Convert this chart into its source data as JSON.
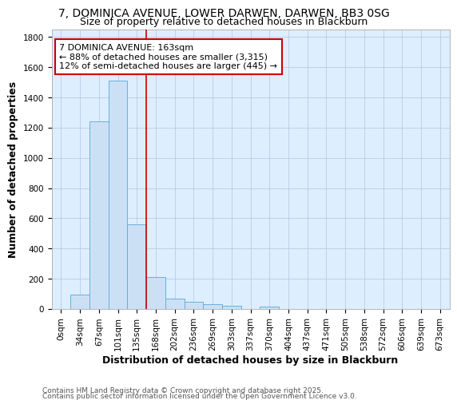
{
  "title_line1": "7, DOMINICA AVENUE, LOWER DARWEN, DARWEN, BB3 0SG",
  "title_line2": "Size of property relative to detached houses in Blackburn",
  "xlabel": "Distribution of detached houses by size in Blackburn",
  "ylabel": "Number of detached properties",
  "footer_line1": "Contains HM Land Registry data © Crown copyright and database right 2025.",
  "footer_line2": "Contains public sector information licensed under the Open Government Licence v3.0.",
  "annotation_line1": "7 DOMINICA AVENUE: 163sqm",
  "annotation_line2": "← 88% of detached houses are smaller (3,315)",
  "annotation_line3": "12% of semi-detached houses are larger (445) →",
  "bar_labels": [
    "0sqm",
    "34sqm",
    "67sqm",
    "101sqm",
    "135sqm",
    "168sqm",
    "202sqm",
    "236sqm",
    "269sqm",
    "303sqm",
    "337sqm",
    "370sqm",
    "404sqm",
    "437sqm",
    "471sqm",
    "505sqm",
    "538sqm",
    "572sqm",
    "606sqm",
    "639sqm",
    "673sqm"
  ],
  "bar_values": [
    0,
    97,
    1240,
    1510,
    560,
    210,
    68,
    47,
    32,
    20,
    0,
    18,
    0,
    0,
    0,
    0,
    0,
    0,
    0,
    0,
    0
  ],
  "bar_color": "#cce0f5",
  "bar_edge_color": "#6baed6",
  "redline_color": "#cc0000",
  "ylim": [
    0,
    1850
  ],
  "yticks": [
    0,
    200,
    400,
    600,
    800,
    1000,
    1200,
    1400,
    1600,
    1800
  ],
  "plot_bg_color": "#ddeeff",
  "fig_bg_color": "#ffffff",
  "grid_color": "#b8cce4",
  "title_fontsize": 10,
  "subtitle_fontsize": 9,
  "axis_label_fontsize": 9,
  "tick_fontsize": 7.5,
  "annotation_fontsize": 8,
  "footer_fontsize": 6.5
}
